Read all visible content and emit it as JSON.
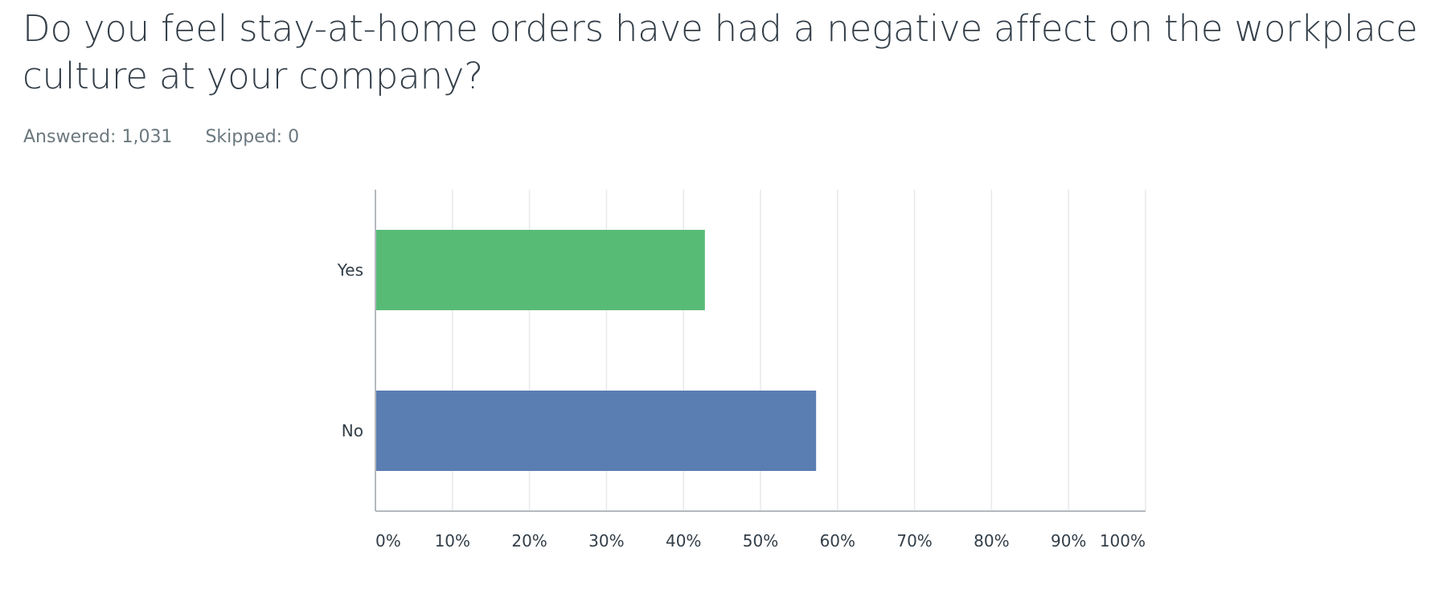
{
  "question": {
    "title": "Do you feel stay-at-home orders have had a negative affect on the workplace culture at your company?",
    "answered": "Answered: 1,031",
    "skipped": "Skipped: 0"
  },
  "colors": {
    "yes": "#57bb76",
    "no": "#5a7db2",
    "grid": "#e6e8ea",
    "axis": "#b5b9bd",
    "text": "#333e48"
  },
  "chart_data": {
    "type": "bar",
    "orientation": "horizontal",
    "categories": [
      "Yes",
      "No"
    ],
    "values": [
      42.78,
      57.22
    ],
    "unit": "%",
    "xlim": [
      0,
      100
    ],
    "ticks": [
      "0%",
      "10%",
      "20%",
      "30%",
      "40%",
      "50%",
      "60%",
      "70%",
      "80%",
      "90%",
      "100%"
    ],
    "grid": true,
    "legend": false
  }
}
